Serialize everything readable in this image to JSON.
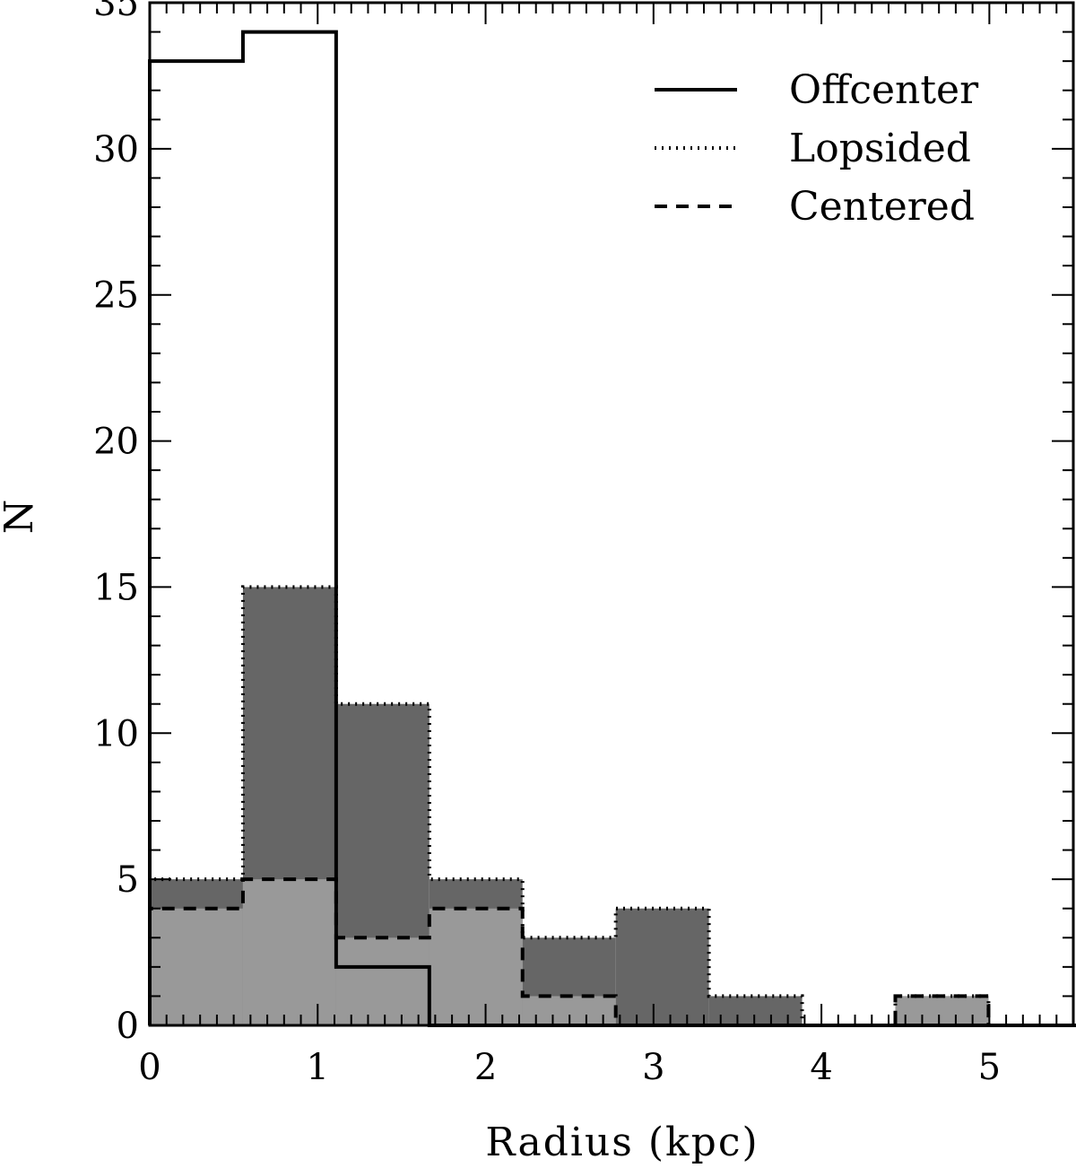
{
  "chart_data": {
    "type": "histogram",
    "xlabel": "Radius (kpc)",
    "ylabel": "N",
    "xlim": [
      0,
      5.5
    ],
    "ylim": [
      0,
      35
    ],
    "bin_width": 0.555,
    "bin_edges": [
      0,
      0.555,
      1.11,
      1.665,
      2.22,
      2.775,
      3.33,
      3.885,
      4.44,
      4.995,
      5.55
    ],
    "x_ticks": [
      0,
      1,
      2,
      3,
      4,
      5
    ],
    "y_ticks": [
      0,
      5,
      10,
      15,
      20,
      25,
      30,
      35
    ],
    "x_tick_labels": [
      "0",
      "1",
      "2",
      "3",
      "4",
      "5"
    ],
    "y_tick_labels": [
      "0",
      "5",
      "10",
      "15",
      "20",
      "25",
      "30",
      "35"
    ],
    "series": [
      {
        "name": "Offcenter",
        "linestyle": "solid",
        "fill": "none",
        "values": [
          33,
          34,
          2,
          0,
          0,
          0,
          0,
          0,
          0,
          0
        ]
      },
      {
        "name": "Lopsided",
        "linestyle": "dotted",
        "fill": "#666666",
        "values": [
          5,
          15,
          11,
          5,
          3,
          4,
          1,
          0,
          1,
          0
        ]
      },
      {
        "name": "Centered",
        "linestyle": "dashed",
        "fill": "#999999",
        "values": [
          4,
          5,
          3,
          4,
          1,
          0,
          0,
          0,
          1,
          0
        ]
      }
    ],
    "legend_position": "top-right",
    "grid": false
  }
}
